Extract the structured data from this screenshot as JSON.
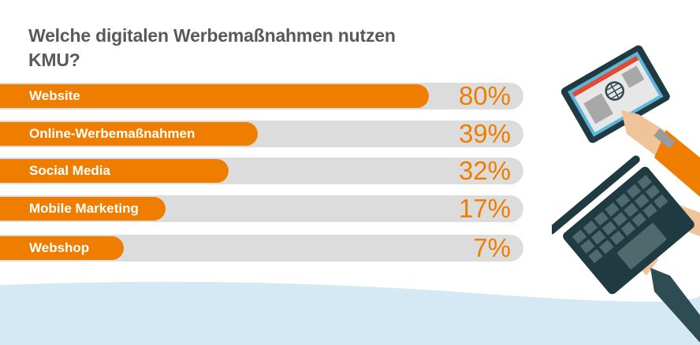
{
  "chart_data": {
    "type": "bar",
    "orientation": "horizontal",
    "title": "Welche digitalen Werbemaßnahmen nutzen KMU?",
    "categories": [
      "Website",
      "Online-Werbemaßnahmen",
      "Social Media",
      "Mobile Marketing",
      "Webshop"
    ],
    "values": [
      80,
      39,
      32,
      17,
      7
    ],
    "value_labels": [
      "80%",
      "39%",
      "32%",
      "17%",
      "7%"
    ],
    "unit": "%",
    "xlim": [
      0,
      100
    ],
    "colors": {
      "bar": "#ef7d00",
      "track": "#dcdcdc",
      "title": "#595959",
      "background_wave": "#d4e9f4"
    }
  },
  "illustration": {
    "icons": [
      "tablet-globe-icon",
      "laptop-keyboard-icon",
      "hands-icon"
    ]
  }
}
